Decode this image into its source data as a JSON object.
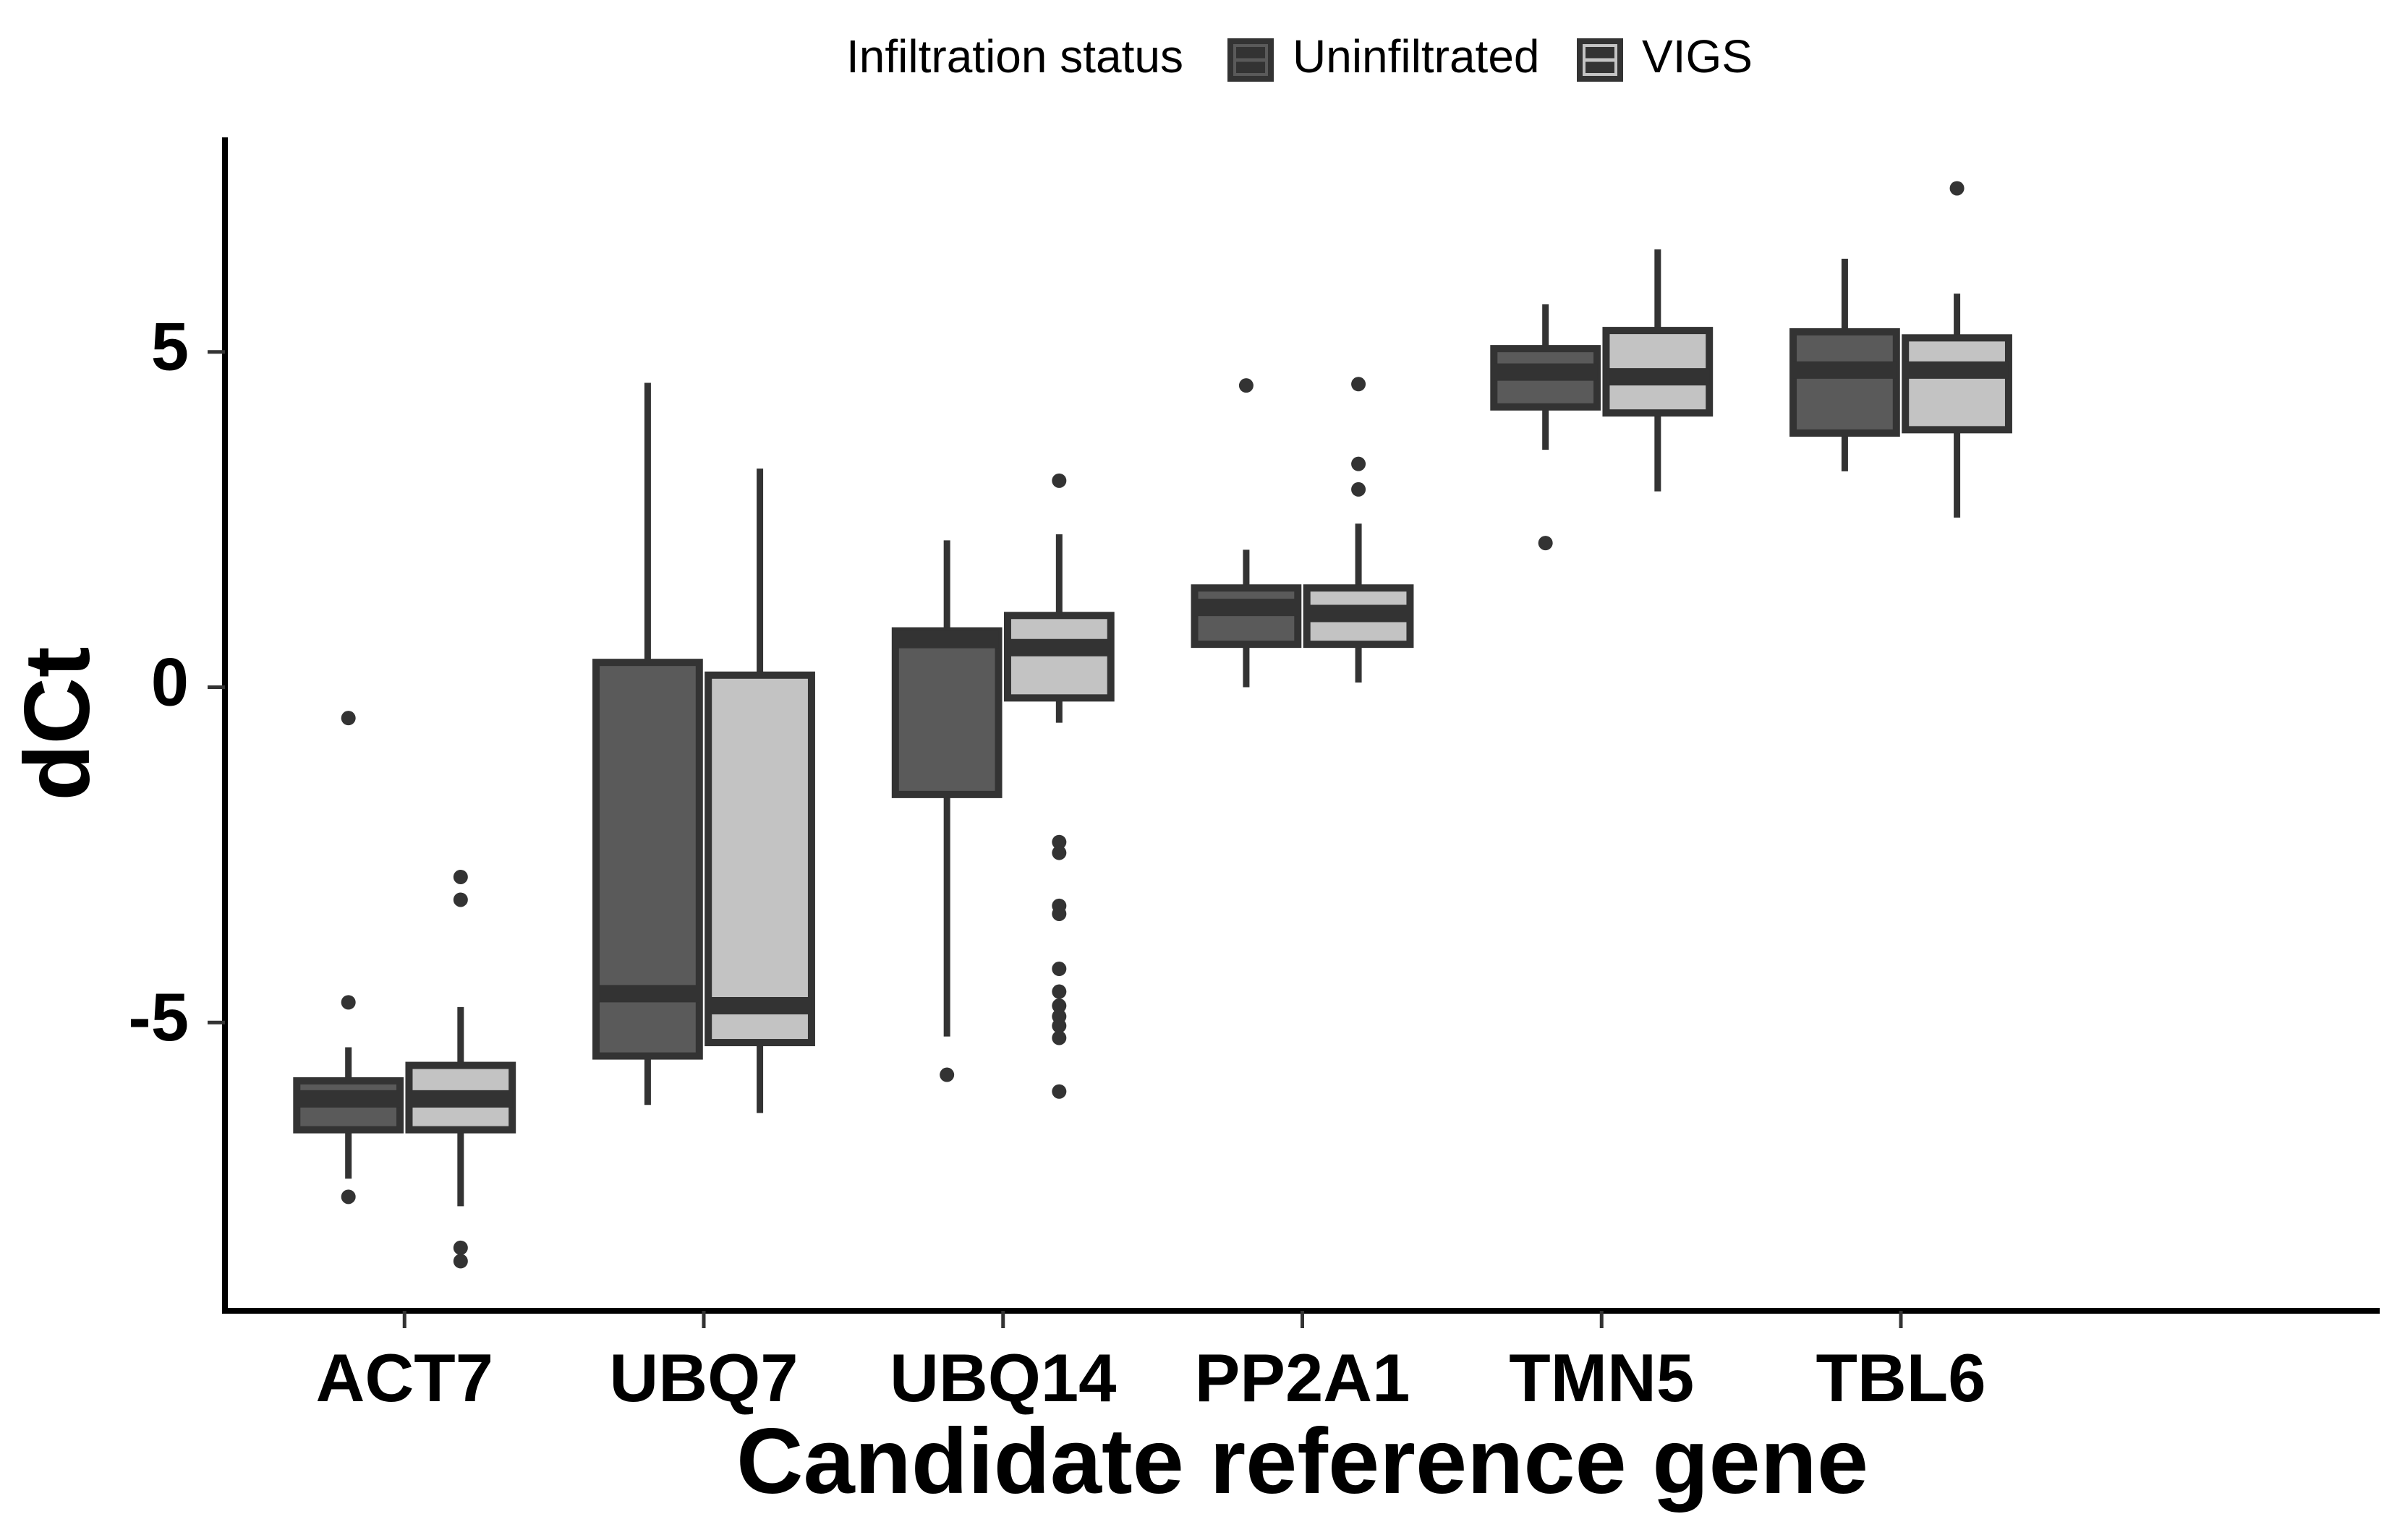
{
  "chart_data": {
    "type": "box",
    "x_label": "Candidate reference gene",
    "y_label": "dCt",
    "legend_title": "Infiltration status",
    "legend_position": "top",
    "categories": [
      "ACT7",
      "UBQ7",
      "UBQ14",
      "PP2A1",
      "TMN5",
      "TBL6"
    ],
    "ylim": [
      -9.3,
      8.2
    ],
    "yticks": [
      -5,
      0,
      5
    ],
    "grid": false,
    "series": [
      {
        "name": "Uninfiltrated",
        "color": "#5a5a5a",
        "min": [
          -7.33,
          -6.23,
          -5.21,
          0,
          3.54,
          3.22
        ],
        "q1": [
          -6.6,
          -5.5,
          -1.6,
          0.64,
          4.18,
          3.79
        ],
        "median": [
          -6.14,
          -4.57,
          0.71,
          1.19,
          4.7,
          4.73
        ],
        "q3": [
          -5.87,
          0.37,
          0.84,
          1.48,
          5.05,
          5.3
        ],
        "max": [
          -5.37,
          4.54,
          2.19,
          2.05,
          5.71,
          6.39
        ],
        "outliers": [
          [
            -0.46,
            -4.7,
            -7.6
          ],
          [],
          [
            -5.78
          ],
          [
            4.5
          ],
          [
            2.15
          ],
          []
        ]
      },
      {
        "name": "VIGS",
        "color": "#c3c3c3",
        "min": [
          -7.74,
          -6.35,
          -0.53,
          0.07,
          2.92,
          2.53
        ],
        "q1": [
          -6.6,
          -5.3,
          -0.16,
          0.64,
          4.09,
          3.84
        ],
        "median": [
          -6.14,
          -4.75,
          0.59,
          1.1,
          4.63,
          4.73
        ],
        "q3": [
          -5.64,
          0.18,
          1.07,
          1.48,
          5.32,
          5.21
        ],
        "max": [
          -4.77,
          3.26,
          2.28,
          2.44,
          6.53,
          5.87
        ],
        "outliers": [
          [
            -2.83,
            -3.17,
            -8.36,
            -8.56
          ],
          [],
          [
            3.08,
            -2.31,
            -2.47,
            -3.26,
            -3.38,
            -4.2,
            -4.54,
            -4.75,
            -4.91,
            -5.05,
            -5.23,
            -6.03
          ],
          [
            4.52,
            3.33,
            2.95
          ],
          [],
          [
            7.44
          ]
        ]
      }
    ]
  }
}
